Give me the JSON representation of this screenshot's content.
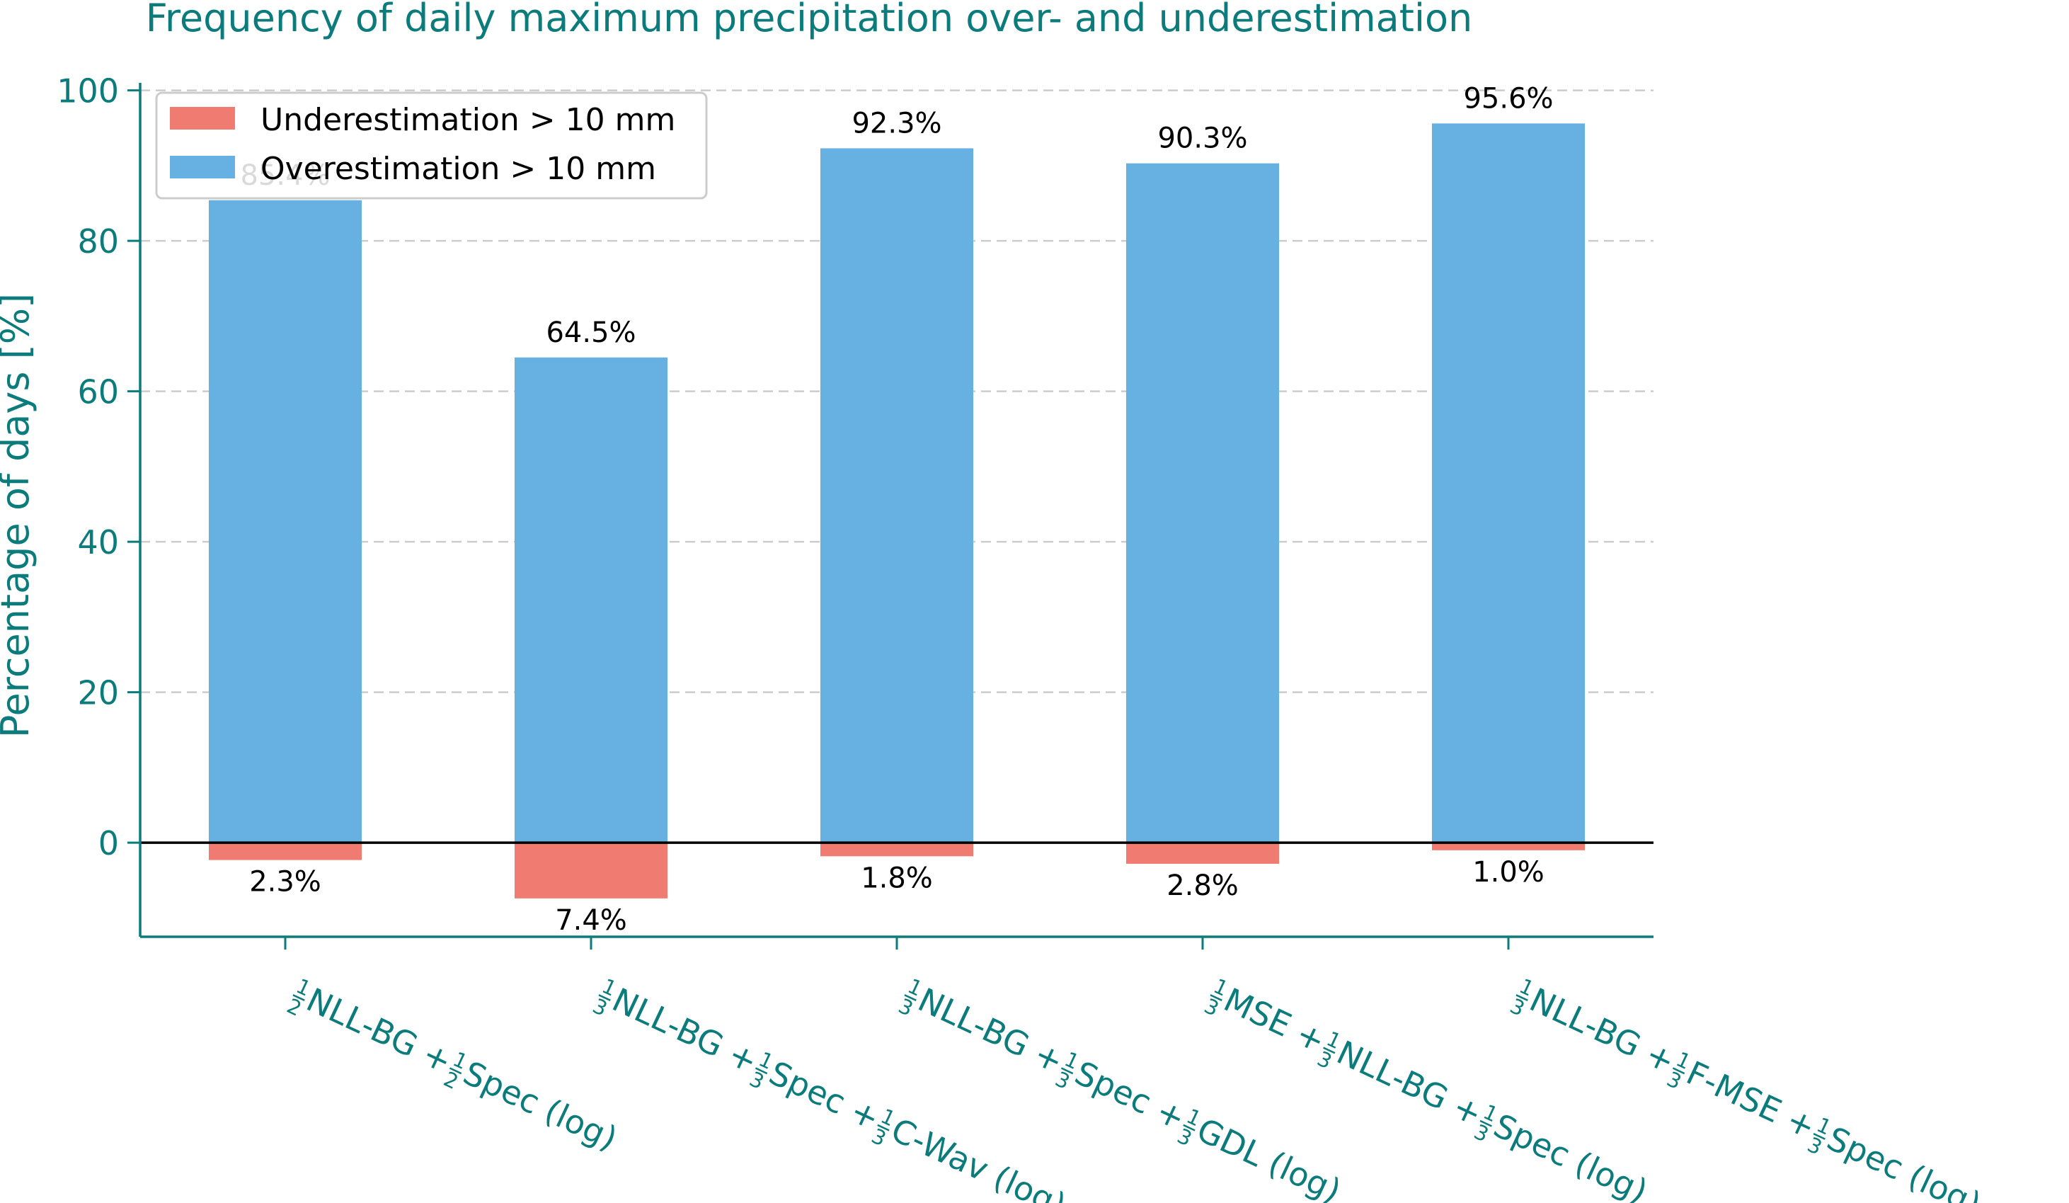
{
  "chart_data": {
    "type": "bar",
    "title": "Frequency of daily maximum precipitation over- and underestimation",
    "ylabel": "Percentage of days [%]",
    "xlabel": "",
    "ylim": [
      -12.5,
      101
    ],
    "yticks": [
      0,
      20,
      40,
      60,
      80,
      100
    ],
    "grid": "y-dashed",
    "legend_position": "top-left",
    "colors": {
      "under": "#f07b70",
      "over": "#67b0e2",
      "axis": "#0b7b7b"
    },
    "categories": [
      {
        "parts": [
          {
            "frac": [
              "1",
              "2"
            ]
          },
          {
            "t": "NLL-BG + "
          },
          {
            "frac": [
              "1",
              "2"
            ]
          },
          {
            "t": "Spec (log)"
          }
        ]
      },
      {
        "parts": [
          {
            "frac": [
              "1",
              "3"
            ]
          },
          {
            "t": "NLL-BG + "
          },
          {
            "frac": [
              "1",
              "3"
            ]
          },
          {
            "t": "Spec + "
          },
          {
            "frac": [
              "1",
              "3"
            ]
          },
          {
            "t": "C-Wav (log)"
          }
        ]
      },
      {
        "parts": [
          {
            "frac": [
              "1",
              "3"
            ]
          },
          {
            "t": "NLL-BG + "
          },
          {
            "frac": [
              "1",
              "3"
            ]
          },
          {
            "t": "Spec + "
          },
          {
            "frac": [
              "1",
              "3"
            ]
          },
          {
            "t": "GDL (log)"
          }
        ]
      },
      {
        "parts": [
          {
            "frac": [
              "1",
              "3"
            ]
          },
          {
            "t": "MSE + "
          },
          {
            "frac": [
              "1",
              "3"
            ]
          },
          {
            "t": "NLL-BG + "
          },
          {
            "frac": [
              "1",
              "3"
            ]
          },
          {
            "t": "Spec (log)"
          }
        ]
      },
      {
        "parts": [
          {
            "frac": [
              "1",
              "3"
            ]
          },
          {
            "t": "NLL-BG + "
          },
          {
            "frac": [
              "1",
              "3"
            ]
          },
          {
            "t": "F-MSE + "
          },
          {
            "frac": [
              "1",
              "3"
            ]
          },
          {
            "t": "Spec (log)"
          }
        ]
      }
    ],
    "series": [
      {
        "name": "Underestimation > 10 mm",
        "key": "under",
        "values": [
          2.3,
          7.4,
          1.8,
          2.8,
          1.0
        ],
        "labels": [
          "2.3%",
          "7.4%",
          "1.8%",
          "2.8%",
          "1.0%"
        ]
      },
      {
        "name": "Overestimation > 10 mm",
        "key": "over",
        "values": [
          85.4,
          64.5,
          92.3,
          90.3,
          95.6
        ],
        "labels": [
          "85.4%",
          "64.5%",
          "92.3%",
          "90.3%",
          "95.6%"
        ]
      }
    ]
  }
}
